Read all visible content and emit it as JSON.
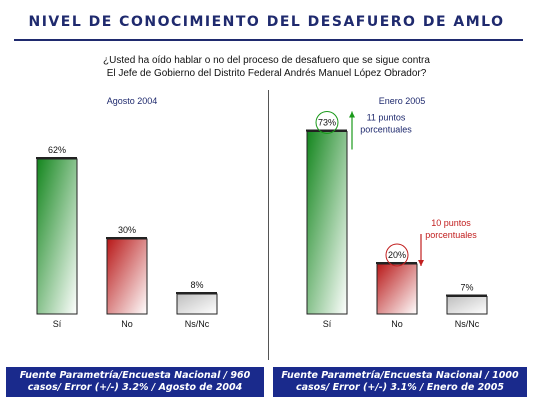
{
  "title": "NIVEL DE CONOCIMIENTO DEL DESAFUERO DE AMLO",
  "question_line1": "¿Usted ha oído hablar o no del proceso de desafuero que se sigue contra",
  "question_line2": "El Jefe de Gobierno del Distrito Federal Andrés Manuel López Obrador?",
  "colors": {
    "si": "#1e9a2a",
    "no": "#c22020",
    "nsnc": "#d8d8d8",
    "navy": "#1a2a8c",
    "up_arrow": "#1a9a1a",
    "down_arrow": "#c22020"
  },
  "chart_data": [
    {
      "type": "bar",
      "subtitle": "Agosto 2004",
      "categories": [
        "Sí",
        "No",
        "Ns/Nc"
      ],
      "values": [
        62,
        30,
        8
      ],
      "value_labels": [
        "62%",
        "30%",
        "8%"
      ],
      "ylim": [
        0,
        80
      ]
    },
    {
      "type": "bar",
      "subtitle": "Enero 2005",
      "categories": [
        "Sí",
        "No",
        "Ns/Nc"
      ],
      "values": [
        73,
        20,
        7
      ],
      "value_labels": [
        "73%",
        "20%",
        "7%"
      ],
      "ylim": [
        0,
        80
      ],
      "annotations": [
        {
          "category": "Sí",
          "direction": "up",
          "line1": "11 puntos",
          "line2": "porcentuales"
        },
        {
          "category": "No",
          "direction": "down",
          "line1": "10 puntos",
          "line2": "porcentuales"
        }
      ]
    }
  ],
  "footer_left_line1": "Fuente Parametría/Encuesta Nacional / 960",
  "footer_left_line2": "casos/ Error (+/-) 3.2% / Agosto de 2004",
  "footer_right_line1": "Fuente Parametría/Encuesta Nacional / 1000",
  "footer_right_line2": "casos/ Error (+/-) 3.1% / Enero de 2005"
}
